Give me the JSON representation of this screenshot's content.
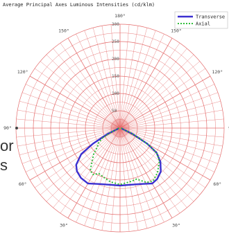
{
  "chart_data": {
    "type": "polar",
    "title": "Average Principal Axes Luminous Intensities (cd/klm)",
    "radial_range": [
      0,
      300
    ],
    "radial_ticks": [
      50,
      100,
      150,
      200,
      250,
      300
    ],
    "radial_tick_labels": [
      "50",
      "100",
      "150",
      "200",
      "250",
      "300"
    ],
    "angle_labels": [
      {
        "angle": 180,
        "text": "180°"
      },
      {
        "angle": 150,
        "text": "150°"
      },
      {
        "angle": 120,
        "text": "120°"
      },
      {
        "angle": 90,
        "text": "90°"
      },
      {
        "angle": 60,
        "text": "60°"
      },
      {
        "angle": 30,
        "text": "30°"
      }
    ],
    "grid": true,
    "legend_position": "top-right",
    "series": [
      {
        "name": "Transverse",
        "color": "#3a2fd0",
        "style": "solid",
        "points": [
          [
            -90,
            3
          ],
          [
            -80,
            4
          ],
          [
            -70,
            8
          ],
          [
            -65,
            40
          ],
          [
            -60,
            90
          ],
          [
            -56,
            135
          ],
          [
            -50,
            165
          ],
          [
            -45,
            176
          ],
          [
            -38,
            183
          ],
          [
            -30,
            185
          ],
          [
            -20,
            172
          ],
          [
            -12,
            167
          ],
          [
            0,
            166
          ],
          [
            12,
            167
          ],
          [
            20,
            172
          ],
          [
            30,
            185
          ],
          [
            36,
            182
          ],
          [
            43,
            172
          ],
          [
            50,
            152
          ],
          [
            56,
            127
          ],
          [
            60,
            90
          ],
          [
            65,
            40
          ],
          [
            70,
            8
          ],
          [
            80,
            4
          ],
          [
            90,
            3
          ]
        ]
      },
      {
        "name": "Axial",
        "color": "#2fbf3a",
        "style": "dotted",
        "points": [
          [
            -90,
            3
          ],
          [
            -80,
            4
          ],
          [
            -70,
            8
          ],
          [
            -65,
            30
          ],
          [
            -60,
            60
          ],
          [
            -55,
            78
          ],
          [
            -50,
            85
          ],
          [
            -46,
            105
          ],
          [
            -40,
            125
          ],
          [
            -35,
            150
          ],
          [
            -30,
            155
          ],
          [
            -25,
            145
          ],
          [
            -18,
            150
          ],
          [
            -10,
            158
          ],
          [
            0,
            163
          ],
          [
            10,
            158
          ],
          [
            18,
            155
          ],
          [
            26,
            175
          ],
          [
            32,
            180
          ],
          [
            40,
            168
          ],
          [
            46,
            155
          ],
          [
            50,
            148
          ],
          [
            56,
            127
          ],
          [
            60,
            90
          ],
          [
            65,
            40
          ],
          [
            70,
            8
          ],
          [
            80,
            4
          ],
          [
            90,
            3
          ]
        ]
      }
    ]
  },
  "background_text": {
    "line1": "or",
    "line2": "s"
  }
}
